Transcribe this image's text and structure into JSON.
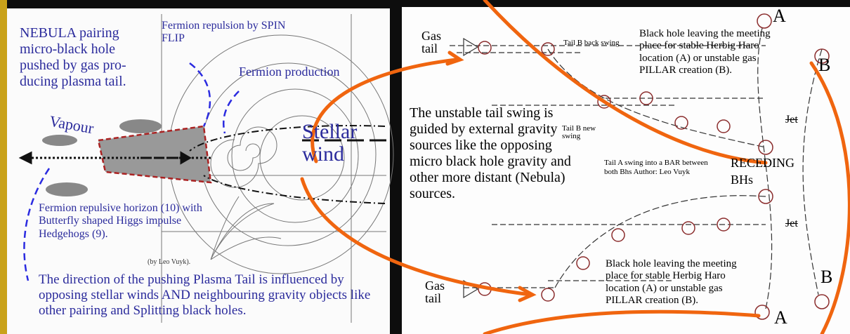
{
  "left_panel": {
    "intro": "NEBULA pairing micro-black hole pushed by gas pro-ducing plasma tail.",
    "spin_flip": "Fermion repulsion by SPIN FLIP",
    "production": "Fermion production",
    "vapour": "Vapour",
    "stellar_wind": "Stellar wind",
    "horizon": "Fermion repulsive horizon (10) with Butterfly shaped Higgs impulse Hedgehogs (9).",
    "credit": "(by Leo Vuyk).",
    "direction": "The direction of the pushing Plasma Tail is influenced by opposing stellar winds AND neighbouring gravity objects like other pairing and Splitting black holes."
  },
  "right_panel": {
    "gas_tail_top": "Gas tail",
    "gas_tail_bottom": "Gas tail",
    "tail_b_back": "Tail B back swing",
    "tail_b_new": "Tail B new swing",
    "leaving_top": "Black hole leaving the meeting place for stable Herbig Haro location (A) or unstable gas PILLAR creation (B).",
    "leaving_bottom": "Black hole leaving the meeting place for stable Herbig Haro location (A) or unstable gas PILLAR creation (B).",
    "unstable": "The unstable tail swing is guided by external gravity sources like the opposing micro black hole gravity and other more distant (Nebula) sources.",
    "tail_a": "Tail A swing into a BAR between both Bhs Author: Leo Vuyk",
    "receding": "RECEDING",
    "bhs": "BHs",
    "jet_top": "Jet",
    "jet_bottom": "Jet",
    "label_a_top": "A",
    "label_b_top": "B",
    "label_b_bottom": "B",
    "label_a_bottom": "A"
  }
}
